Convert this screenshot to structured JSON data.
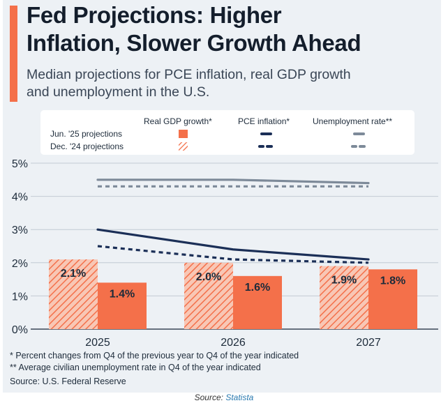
{
  "title_line1": "Fed Projections: Higher",
  "title_line2": "Inflation, Slower Growth Ahead",
  "subtitle_line1": "Median projections for PCE inflation, real GDP growth",
  "subtitle_line2": "and unemployment in the U.S.",
  "legend": {
    "gdp": "Real GDP growth*",
    "pce": "PCE inflation*",
    "unemp": "Unemployment rate**",
    "jun": "Jun. '25 projections",
    "dec": "Dec. '24 projections"
  },
  "footnotes": {
    "note1": "*  Percent changes from Q4 of the previous year to Q4 of the year indicated",
    "note2": "** Average civilian unemployment rate in Q4 of the year indicated",
    "source": "Source: U.S. Federal Reserve"
  },
  "caption": {
    "prefix": "Source:",
    "name": "Statista"
  },
  "colors": {
    "gdp": "#f4704a",
    "gdp_hatch": "#f7b49d",
    "pce": "#1b2f57",
    "unemp": "#7d8a99",
    "accent": "#f4704a"
  },
  "chart_data": {
    "type": "bar",
    "categories": [
      "2025",
      "2026",
      "2027"
    ],
    "ylim": [
      0,
      5
    ],
    "yticks": [
      "0%",
      "1%",
      "2%",
      "3%",
      "4%",
      "5%"
    ],
    "grid": true,
    "legend_position": "top",
    "series": [
      {
        "name": "Real GDP growth* – Dec. '24 projections",
        "kind": "bar",
        "style": "hatched",
        "values": [
          2.1,
          2.0,
          1.9
        ],
        "labels": [
          "2.1%",
          "2.0%",
          "1.9%"
        ]
      },
      {
        "name": "Real GDP growth* – Jun. '25 projections",
        "kind": "bar",
        "style": "solid",
        "values": [
          1.4,
          1.6,
          1.8
        ],
        "labels": [
          "1.4%",
          "1.6%",
          "1.8%"
        ]
      },
      {
        "name": "PCE inflation* – Jun. '25 projections",
        "kind": "line",
        "style": "solid",
        "values": [
          3.0,
          2.4,
          2.1
        ]
      },
      {
        "name": "PCE inflation* – Dec. '24 projections",
        "kind": "line",
        "style": "dashed",
        "values": [
          2.5,
          2.1,
          2.0
        ]
      },
      {
        "name": "Unemployment rate** – Jun. '25 projections",
        "kind": "line",
        "style": "solid",
        "values": [
          4.5,
          4.5,
          4.4
        ]
      },
      {
        "name": "Unemployment rate** – Dec. '24 projections",
        "kind": "line",
        "style": "dashed",
        "values": [
          4.3,
          4.3,
          4.3
        ]
      }
    ]
  }
}
